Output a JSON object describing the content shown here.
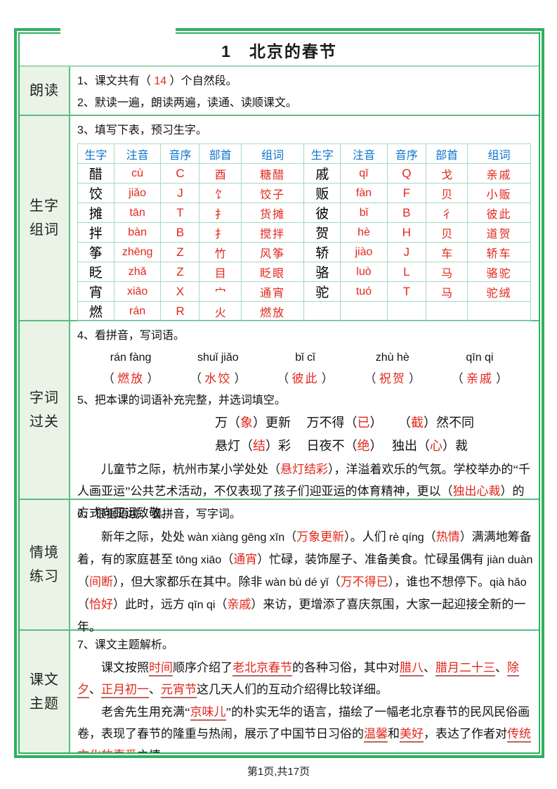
{
  "page": {
    "title": "1　北京的春节",
    "footer": "第1页,共17页"
  },
  "colors": {
    "border_green": "#2fb061",
    "header_blue": "#0c74cc",
    "answer_red": "#e2271b",
    "label_bg": "#e9f4e6"
  },
  "sections": {
    "read": {
      "label": [
        "朗读"
      ],
      "line1": [
        {
          "t": "1、课文共有（  "
        },
        {
          "t": "14",
          "c": "r"
        },
        {
          "t": "  ）个自然段。"
        }
      ],
      "line2": "2、默读一遍，朗读两遍，读通、读顺课文。"
    },
    "words": {
      "label": [
        "生字",
        "组词"
      ],
      "question": "3、填写下表，预习生字。",
      "table": {
        "headers": [
          "生字",
          "注音",
          "音序",
          "部首",
          "组词",
          "生字",
          "注音",
          "音序",
          "部首",
          "组词"
        ],
        "col_classes": [
          "c-char",
          "c-py",
          "c-ini",
          "c-rad",
          "c-word",
          "c-char",
          "c-py",
          "c-ini",
          "c-rad",
          "c-word"
        ],
        "rows": [
          [
            "醋",
            "cù",
            "C",
            "酉",
            "糖醋",
            "戚",
            "qī",
            "Q",
            "戈",
            "亲戚"
          ],
          [
            "饺",
            "jiǎo",
            "J",
            "饣",
            "饺子",
            "贩",
            "fàn",
            "F",
            "贝",
            "小贩"
          ],
          [
            "摊",
            "tān",
            "T",
            "扌",
            "货摊",
            "彼",
            "bǐ",
            "B",
            "彳",
            "彼此"
          ],
          [
            "拌",
            "bàn",
            "B",
            "扌",
            "搅拌",
            "贺",
            "hè",
            "H",
            "贝",
            "道贺"
          ],
          [
            "筝",
            "zhēng",
            "Z",
            "竹",
            "风筝",
            "轿",
            "jiào",
            "J",
            "车",
            "轿车"
          ],
          [
            "眨",
            "zhǎ",
            "Z",
            "目",
            "眨眼",
            "骆",
            "luò",
            "L",
            "马",
            "骆驼"
          ],
          [
            "宵",
            "xiāo",
            "X",
            "宀",
            "通宵",
            "驼",
            "tuó",
            "T",
            "马",
            "驼绒"
          ],
          [
            "燃",
            "rán",
            "R",
            "火",
            "燃放",
            "",
            "",
            "",
            "",
            ""
          ]
        ]
      }
    },
    "pass": {
      "label": [
        "字词",
        "过关"
      ],
      "q4": "4、看拼音，写词语。",
      "pinyin": [
        "rán  fàng",
        "shuǐ  jiǎo",
        "bǐ  cǐ",
        "zhù  hè",
        "qīn  qi"
      ],
      "answers": [
        "燃放",
        "水饺",
        "彼此",
        "祝贺",
        "亲戚"
      ],
      "q5": "5、把本课的词语补充完整，并选词填空。",
      "fill1": [
        {
          "t": "万（"
        },
        {
          "t": "象",
          "c": "hand"
        },
        {
          "t": "）更新　 万不得（"
        },
        {
          "t": "已",
          "c": "hand"
        },
        {
          "t": "）　 　（"
        },
        {
          "t": "截",
          "c": "hand"
        },
        {
          "t": "）然不同"
        }
      ],
      "fill2": [
        {
          "t": "悬灯（"
        },
        {
          "t": "结",
          "c": "hand"
        },
        {
          "t": "）彩　 日夜不（"
        },
        {
          "t": "绝",
          "c": "hand"
        },
        {
          "t": "）　 独出（"
        },
        {
          "t": "心",
          "c": "hand"
        },
        {
          "t": "）裁"
        }
      ],
      "para": [
        {
          "t": "儿童节之际，杭州市某小学处处（"
        },
        {
          "t": "悬灯结彩",
          "c": "hand"
        },
        {
          "t": "），洋溢着欢乐的气氛。学校举办的“千人画亚运”公共艺术活动，不仅表现了孩子们迎亚运的体育精神，更以（"
        },
        {
          "t": "独出心裁",
          "c": "hand"
        },
        {
          "t": "）的方式向亚运致敬。"
        }
      ]
    },
    "context": {
      "label": [
        "情境",
        "练习"
      ],
      "q6": "6、根据语境，看拼音，写字词。",
      "para": [
        {
          "t": "新年之际，处处 "
        },
        {
          "t": "wàn xiàng gēng xīn",
          "c": "py"
        },
        {
          "t": "（"
        },
        {
          "t": "万象更新",
          "c": "hand"
        },
        {
          "t": "）。人们 "
        },
        {
          "t": "rè qíng",
          "c": "py"
        },
        {
          "t": "（"
        },
        {
          "t": "热情",
          "c": "hand"
        },
        {
          "t": "）满满地筹备着，有的家庭甚至 "
        },
        {
          "t": "tōng xiāo",
          "c": "py"
        },
        {
          "t": "（"
        },
        {
          "t": "通宵",
          "c": "hand"
        },
        {
          "t": "）忙碌，装饰屋子、准备美食。忙碌虽偶有 "
        },
        {
          "t": "jiàn duàn",
          "c": "py"
        },
        {
          "t": "（"
        },
        {
          "t": "间断",
          "c": "hand"
        },
        {
          "t": "），但大家都乐在其中。除非 "
        },
        {
          "t": "wàn bù dé yǐ",
          "c": "py"
        },
        {
          "t": "（"
        },
        {
          "t": "万不得已",
          "c": "hand"
        },
        {
          "t": "），谁也不想停下。"
        },
        {
          "t": "qià hǎo",
          "c": "py"
        },
        {
          "t": "（"
        },
        {
          "t": "恰好",
          "c": "hand"
        },
        {
          "t": "）此时，远方 "
        },
        {
          "t": "qīn qi",
          "c": "py"
        },
        {
          "t": "（"
        },
        {
          "t": "亲戚",
          "c": "hand"
        },
        {
          "t": "）来访，更增添了喜庆氛围，大家一起迎接全新的一年。"
        }
      ]
    },
    "theme": {
      "label": [
        "课文",
        "主题"
      ],
      "q7": "7、课文主题解析。",
      "para1": [
        {
          "t": "课文按照"
        },
        {
          "t": "时间",
          "c": "ru"
        },
        {
          "t": "顺序介绍了"
        },
        {
          "t": "老北京春节",
          "c": "ru"
        },
        {
          "t": "的各种习俗，其中对"
        },
        {
          "t": "腊八",
          "c": "ru"
        },
        {
          "t": "、"
        },
        {
          "t": "腊月二十三",
          "c": "ru"
        },
        {
          "t": "、"
        },
        {
          "t": "除夕",
          "c": "ru"
        },
        {
          "t": "、"
        },
        {
          "t": "正月初一",
          "c": "ru"
        },
        {
          "t": "、"
        },
        {
          "t": "元宵节",
          "c": "ru"
        },
        {
          "t": "这几天人们的互动介绍得比较详细。"
        }
      ],
      "para2": [
        {
          "t": "老舍先生用充满“"
        },
        {
          "t": "京味儿",
          "c": "ru"
        },
        {
          "t": "”的朴实无华的语言，描绘了一幅老北京春节的民风民俗画卷，表现了春节的隆重与热闹，展示了中国节日习俗的"
        },
        {
          "t": "温馨",
          "c": "ru"
        },
        {
          "t": "和"
        },
        {
          "t": "美好",
          "c": "ru"
        },
        {
          "t": "，表达了作者对"
        },
        {
          "t": "传统文化的喜爱",
          "c": "ru"
        },
        {
          "t": "之情。"
        }
      ]
    }
  }
}
